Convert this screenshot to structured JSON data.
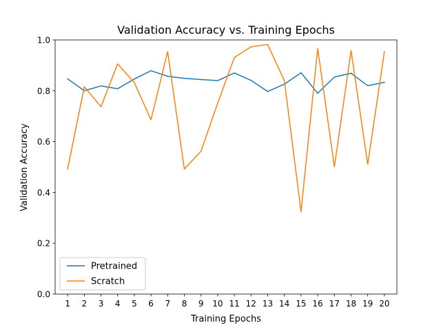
{
  "chart_data": {
    "type": "line",
    "title": "Validation Accuracy vs. Training Epochs",
    "xlabel": "Training Epochs",
    "ylabel": "Validation Accuracy",
    "x": [
      1,
      2,
      3,
      4,
      5,
      6,
      7,
      8,
      9,
      10,
      11,
      12,
      13,
      14,
      15,
      16,
      17,
      18,
      19,
      20
    ],
    "xticks": [
      "1",
      "2",
      "3",
      "4",
      "5",
      "6",
      "7",
      "8",
      "9",
      "10",
      "11",
      "12",
      "13",
      "14",
      "15",
      "16",
      "17",
      "18",
      "19",
      "20"
    ],
    "yticks": [
      "0.0",
      "0.2",
      "0.4",
      "0.6",
      "0.8",
      "1.0"
    ],
    "ylim": [
      0.0,
      1.0
    ],
    "xlim": [
      0.25,
      20.75
    ],
    "grid": false,
    "legend_position": "lower-left",
    "series": [
      {
        "name": "Pretrained",
        "color": "#1f77b4",
        "values": [
          0.847,
          0.8,
          0.819,
          0.808,
          0.846,
          0.879,
          0.857,
          0.849,
          0.844,
          0.84,
          0.87,
          0.841,
          0.797,
          0.826,
          0.871,
          0.79,
          0.854,
          0.869,
          0.82,
          0.833
        ]
      },
      {
        "name": "Scratch",
        "color": "#ff7f0e",
        "values": [
          0.492,
          0.816,
          0.737,
          0.906,
          0.832,
          0.686,
          0.954,
          0.492,
          0.562,
          0.751,
          0.931,
          0.973,
          0.982,
          0.84,
          0.324,
          0.966,
          0.501,
          0.958,
          0.511,
          0.954
        ]
      }
    ]
  }
}
